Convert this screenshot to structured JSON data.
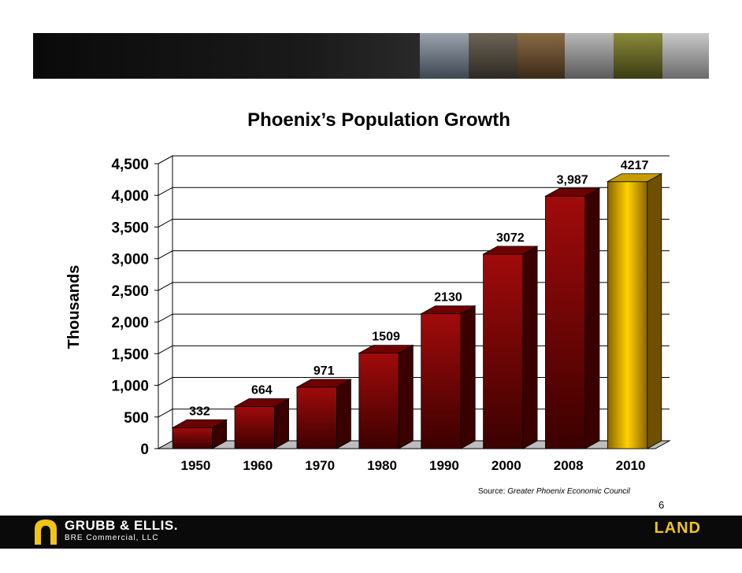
{
  "chart_data": {
    "type": "bar",
    "title": "Phoenix’s Population Growth",
    "ylabel": "Thousands",
    "categories": [
      "1950",
      "1960",
      "1970",
      "1980",
      "1990",
      "2000",
      "2008",
      "2010"
    ],
    "values": [
      332,
      664,
      971,
      1509,
      2130,
      3072,
      3987,
      4217
    ],
    "data_labels": [
      "332",
      "664",
      "971",
      "1509",
      "2130",
      "3072",
      "3,987",
      "4217"
    ],
    "ylim": [
      0,
      4500
    ],
    "yticks": [
      "0",
      "500",
      "1,000",
      "1,500",
      "2,000",
      "2,500",
      "3,000",
      "3,500",
      "4,000",
      "4,500"
    ],
    "grid": true,
    "colors": {
      "bar": "#8b0000",
      "highlight_bar": "#f2c200"
    },
    "highlight_category": "2010"
  },
  "source": {
    "prefix": "Source: ",
    "name": "Greater Phoenix Economic Council"
  },
  "page_number": "6",
  "footer": {
    "company": "GRUBB & ELLIS.",
    "subtitle": "BRE Commercial, LLC",
    "division": "LAND"
  }
}
